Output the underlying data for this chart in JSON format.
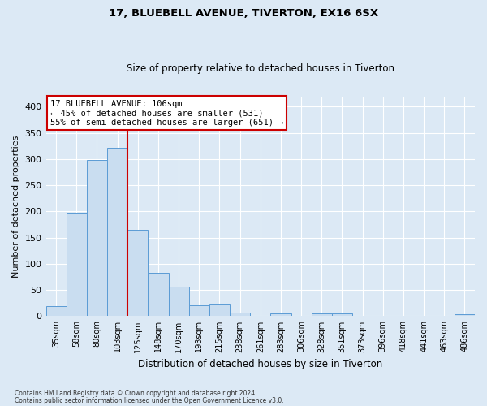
{
  "title_line1": "17, BLUEBELL AVENUE, TIVERTON, EX16 6SX",
  "title_line2": "Size of property relative to detached houses in Tiverton",
  "xlabel": "Distribution of detached houses by size in Tiverton",
  "ylabel": "Number of detached properties",
  "categories": [
    "35sqm",
    "58sqm",
    "80sqm",
    "103sqm",
    "125sqm",
    "148sqm",
    "170sqm",
    "193sqm",
    "215sqm",
    "238sqm",
    "261sqm",
    "283sqm",
    "306sqm",
    "328sqm",
    "351sqm",
    "373sqm",
    "396sqm",
    "418sqm",
    "441sqm",
    "463sqm",
    "486sqm"
  ],
  "values": [
    20,
    197,
    298,
    322,
    165,
    83,
    57,
    21,
    22,
    7,
    0,
    6,
    0,
    5,
    5,
    0,
    0,
    0,
    0,
    0,
    3
  ],
  "bar_color": "#c9ddf0",
  "bar_edgecolor": "#5b9bd5",
  "vline_index": 3.5,
  "vline_color": "#cc0000",
  "annotation_text": "17 BLUEBELL AVENUE: 106sqm\n← 45% of detached houses are smaller (531)\n55% of semi-detached houses are larger (651) →",
  "annotation_box_facecolor": "#ffffff",
  "annotation_box_edgecolor": "#cc0000",
  "ylim": [
    0,
    420
  ],
  "yticks": [
    0,
    50,
    100,
    150,
    200,
    250,
    300,
    350,
    400
  ],
  "plot_bg_color": "#dce9f5",
  "fig_bg_color": "#dce9f5",
  "grid_color": "#ffffff",
  "footer_line1": "Contains HM Land Registry data © Crown copyright and database right 2024.",
  "footer_line2": "Contains public sector information licensed under the Open Government Licence v3.0."
}
